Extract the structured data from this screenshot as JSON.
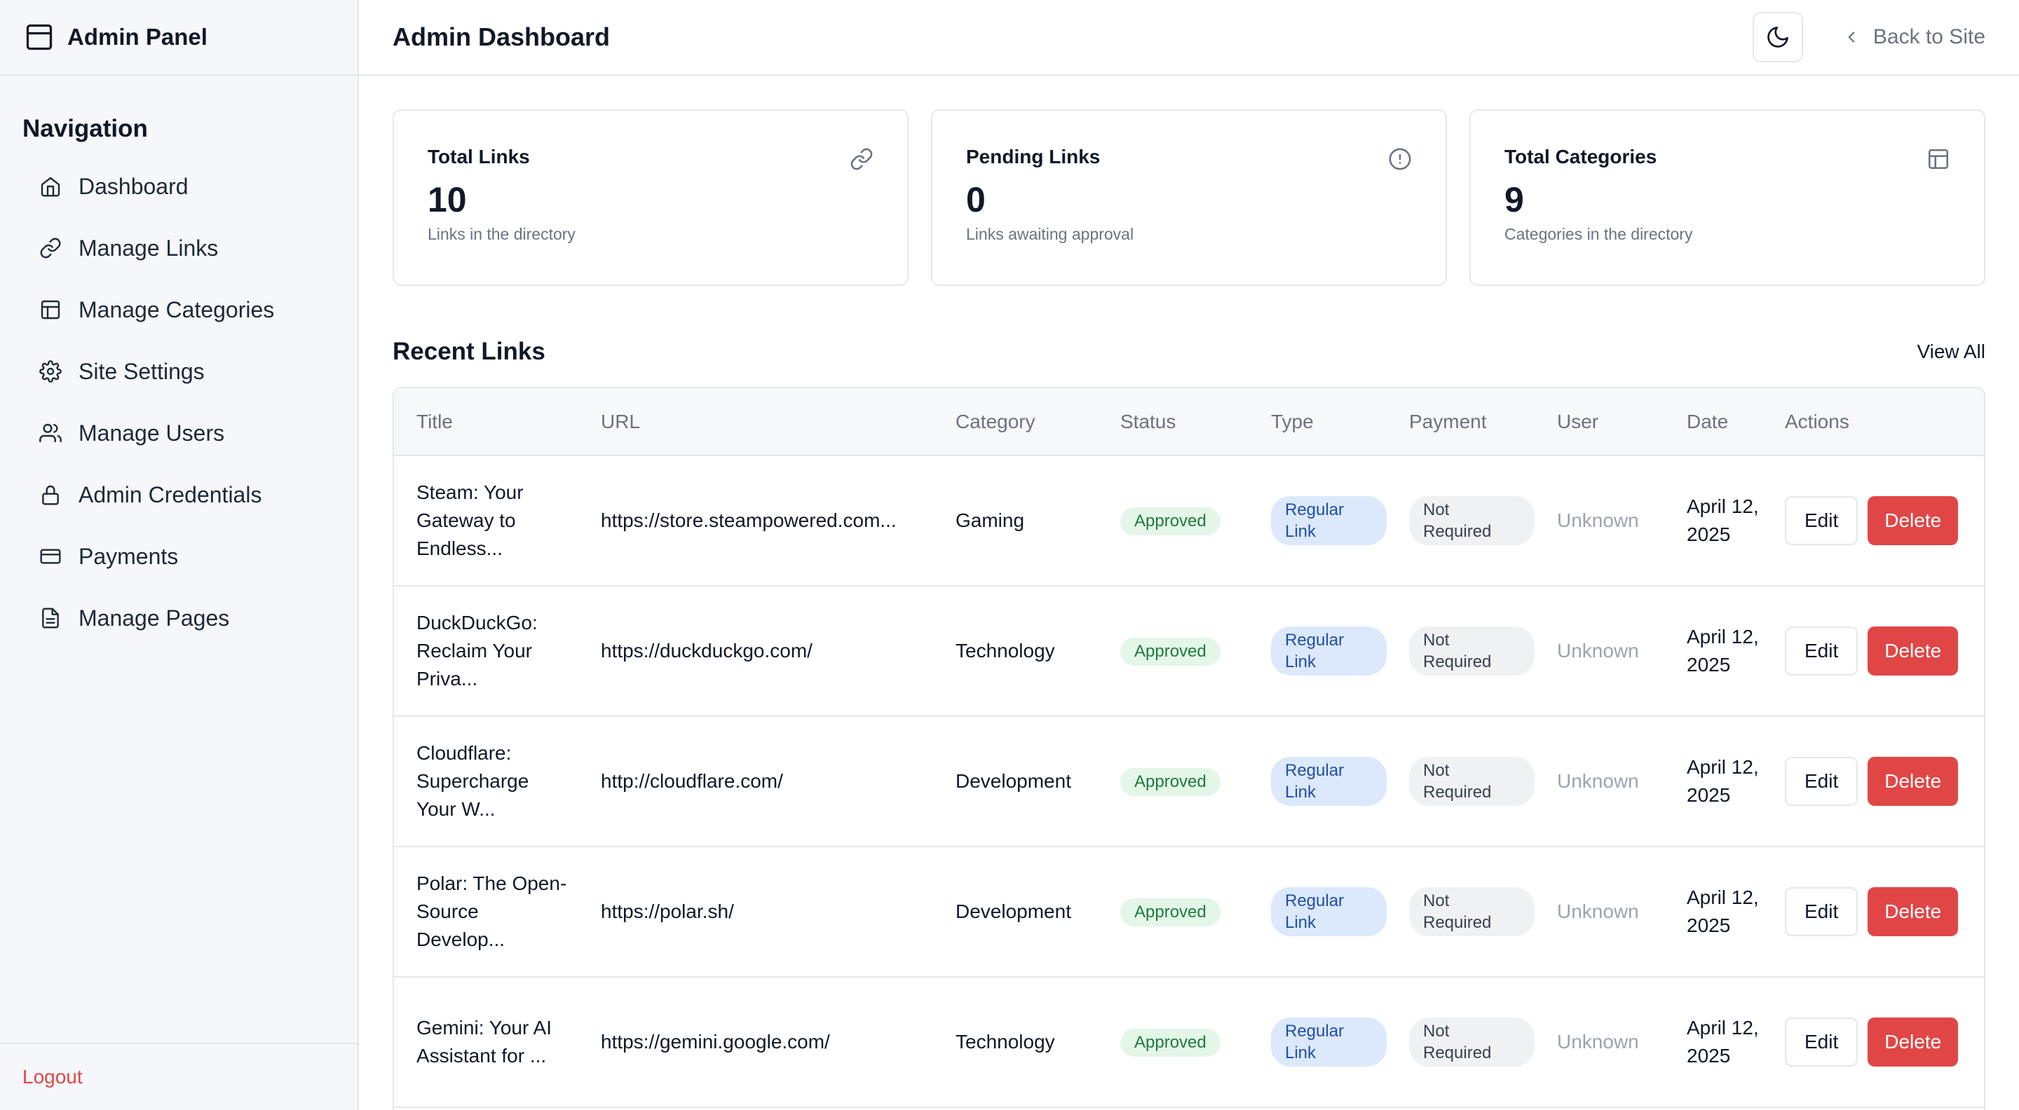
{
  "sidebar": {
    "brand": "Admin Panel",
    "nav_heading": "Navigation",
    "items": [
      {
        "label": "Dashboard",
        "icon": "home-icon"
      },
      {
        "label": "Manage Links",
        "icon": "link-icon"
      },
      {
        "label": "Manage Categories",
        "icon": "layout-icon"
      },
      {
        "label": "Site Settings",
        "icon": "gear-icon"
      },
      {
        "label": "Manage Users",
        "icon": "users-icon"
      },
      {
        "label": "Admin Credentials",
        "icon": "lock-icon"
      },
      {
        "label": "Payments",
        "icon": "credit-card-icon"
      },
      {
        "label": "Manage Pages",
        "icon": "file-icon"
      }
    ],
    "logout_label": "Logout"
  },
  "header": {
    "title": "Admin Dashboard",
    "back_label": "Back to Site"
  },
  "cards": [
    {
      "title": "Total Links",
      "value": "10",
      "sub": "Links in the directory",
      "icon": "link-icon"
    },
    {
      "title": "Pending Links",
      "value": "0",
      "sub": "Links awaiting approval",
      "icon": "alert-circle-icon"
    },
    {
      "title": "Total Categories",
      "value": "9",
      "sub": "Categories in the directory",
      "icon": "layout-icon"
    }
  ],
  "recent": {
    "title": "Recent Links",
    "view_all": "View All",
    "columns": [
      "Title",
      "URL",
      "Category",
      "Status",
      "Type",
      "Payment",
      "User",
      "Date",
      "Actions"
    ],
    "edit_label": "Edit",
    "delete_label": "Delete",
    "rows": [
      {
        "title": "Steam: Your Gateway to Endless...",
        "url": "https://store.steampowered.com...",
        "category": "Gaming",
        "status": "Approved",
        "type": "Regular Link",
        "payment": "Not Required",
        "user": "Unknown",
        "date": "April 12, 2025"
      },
      {
        "title": "DuckDuckGo: Reclaim Your Priva...",
        "url": "https://duckduckgo.com/",
        "category": "Technology",
        "status": "Approved",
        "type": "Regular Link",
        "payment": "Not Required",
        "user": "Unknown",
        "date": "April 12, 2025"
      },
      {
        "title": "Cloudflare: Supercharge Your W...",
        "url": "http://cloudflare.com/",
        "category": "Development",
        "status": "Approved",
        "type": "Regular Link",
        "payment": "Not Required",
        "user": "Unknown",
        "date": "April 12, 2025"
      },
      {
        "title": "Polar: The Open-Source Develop...",
        "url": "https://polar.sh/",
        "category": "Development",
        "status": "Approved",
        "type": "Regular Link",
        "payment": "Not Required",
        "user": "Unknown",
        "date": "April 12, 2025"
      },
      {
        "title": "Gemini: Your AI Assistant for ...",
        "url": "https://gemini.google.com/",
        "category": "Technology",
        "status": "Approved",
        "type": "Regular Link",
        "payment": "Not Required",
        "user": "Unknown",
        "date": "April 12, 2025"
      }
    ]
  },
  "colors": {
    "danger": "#e04646",
    "approved_bg": "#e3f6e8",
    "type_bg": "#dce8fb",
    "sidebar_bg": "#f5f7fa"
  }
}
